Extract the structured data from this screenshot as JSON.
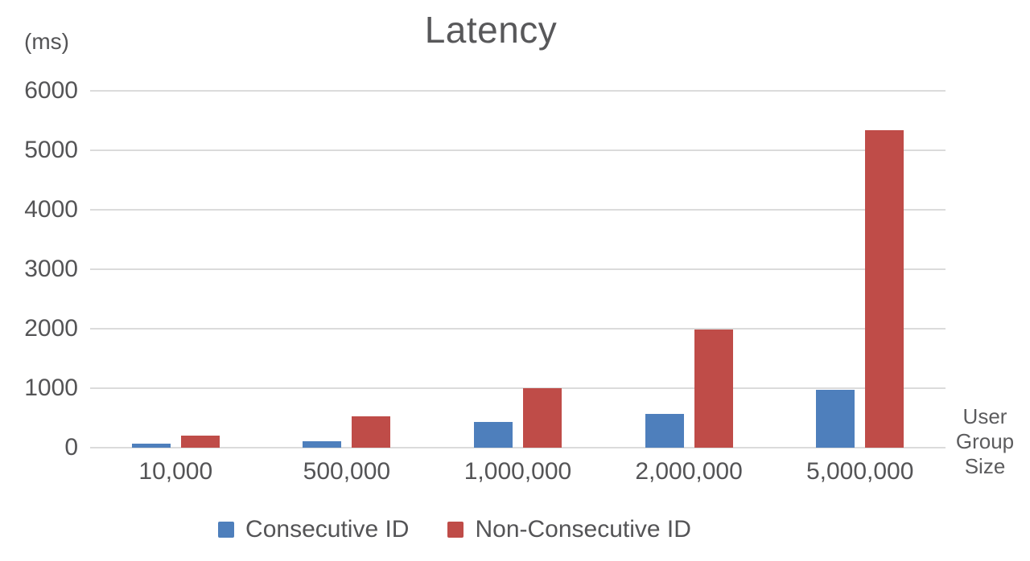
{
  "chart_data": {
    "type": "bar",
    "title": "Latency",
    "y_axis_unit": "(ms)",
    "x_axis_label": "User Group Size",
    "categories": [
      "10,000",
      "500,000",
      "1,000,000",
      "2,000,000",
      "5,000,000"
    ],
    "series": [
      {
        "name": "Consecutive ID",
        "color": "#4E7FBC",
        "values": [
          70,
          110,
          430,
          570,
          975
        ]
      },
      {
        "name": "Non-Consecutive ID",
        "color": "#BF4C48",
        "values": [
          200,
          530,
          1000,
          1980,
          5340
        ]
      }
    ],
    "ylim": [
      0,
      6000
    ],
    "yticks": [
      0,
      1000,
      2000,
      3000,
      4000,
      5000,
      6000
    ],
    "grid": "horizontal",
    "legend_position": "bottom"
  },
  "colors": {
    "gridline": "#DBDBDB",
    "tick_text": "#545456",
    "title_text": "#58585A"
  }
}
